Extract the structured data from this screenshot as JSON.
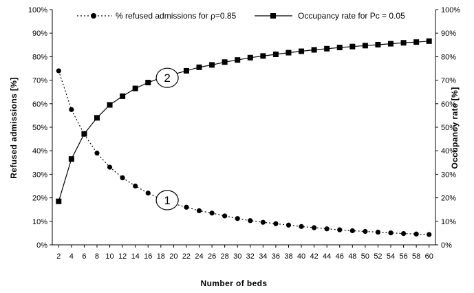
{
  "chart_data": {
    "type": "line",
    "xlabel": "Number of beds",
    "ylabel_left": "Refused admissions [%]",
    "ylabel_right": "Occupancy rate [%]",
    "x": [
      2,
      4,
      6,
      8,
      10,
      12,
      14,
      16,
      18,
      20,
      22,
      24,
      26,
      28,
      30,
      32,
      34,
      36,
      38,
      40,
      42,
      44,
      46,
      48,
      50,
      52,
      54,
      56,
      58,
      60
    ],
    "xlim": [
      1,
      61
    ],
    "ylim": [
      0,
      100
    ],
    "y_ticks": [
      0,
      10,
      20,
      30,
      40,
      50,
      60,
      70,
      80,
      90,
      100
    ],
    "y_tick_labels": [
      "0%",
      "10%",
      "20%",
      "30%",
      "40%",
      "50%",
      "60%",
      "70%",
      "80%",
      "90%",
      "100%"
    ],
    "x_tick_labels": [
      "2",
      "4",
      "6",
      "8",
      "10",
      "12",
      "14",
      "16",
      "18",
      "20",
      "22",
      "24",
      "26",
      "28",
      "30",
      "32",
      "34",
      "36",
      "38",
      "40",
      "42",
      "44",
      "46",
      "48",
      "50",
      "52",
      "54",
      "56",
      "58",
      "60"
    ],
    "grid": false,
    "legend_position": "top",
    "series": [
      {
        "name": "% refused admissions for ρ=0.85",
        "axis": "left",
        "marker": "circle",
        "line_style": "dotted",
        "color": "#000000",
        "values": [
          74,
          57.5,
          47,
          39,
          33,
          28.5,
          25,
          22,
          19.5,
          17.5,
          16,
          14.5,
          13.5,
          12.3,
          11.2,
          10.3,
          9.6,
          9,
          8.4,
          7.8,
          7.3,
          6.8,
          6.4,
          6,
          5.7,
          5.4,
          5.1,
          4.8,
          4.6,
          4.4
        ]
      },
      {
        "name": "Occupancy rate for Pc = 0.05",
        "axis": "right",
        "marker": "square",
        "line_style": "solid",
        "color": "#000000",
        "values": [
          18.5,
          36.5,
          47.2,
          54,
          59.5,
          63.2,
          66.5,
          69,
          71,
          72.5,
          74,
          75.5,
          76.5,
          77.7,
          78.6,
          79.6,
          80.3,
          81,
          81.7,
          82.3,
          82.9,
          83.4,
          83.9,
          84.3,
          84.7,
          85.1,
          85.5,
          85.9,
          86.2,
          86.6
        ]
      }
    ],
    "annotations": [
      {
        "label": "1",
        "x": 19,
        "y": 19
      },
      {
        "label": "2",
        "x": 19,
        "y": 71
      }
    ]
  }
}
